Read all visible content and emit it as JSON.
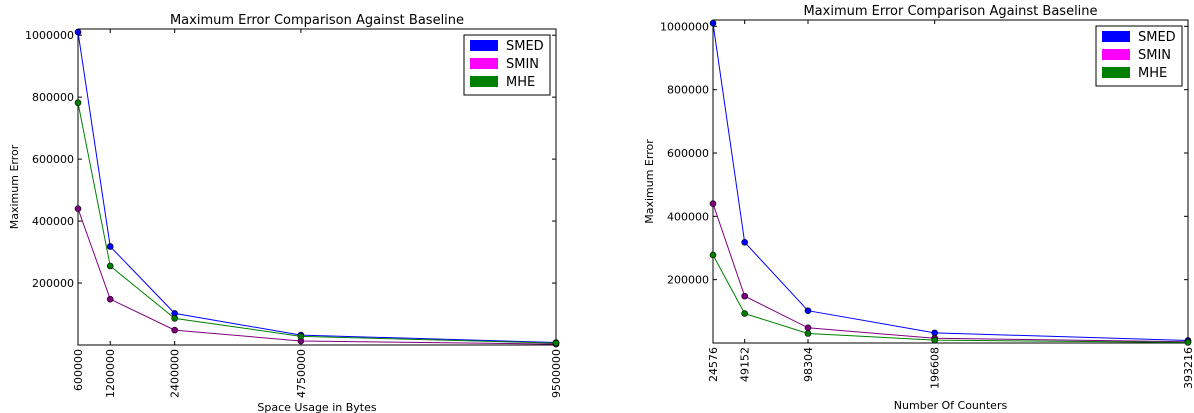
{
  "chart_data": [
    {
      "type": "line",
      "title": "Maximum Error Comparison Against Baseline",
      "xlabel": "Space Usage in Bytes",
      "ylabel": "Maximum Error",
      "x": [
        600000,
        1200000,
        2400000,
        4750000,
        9500000
      ],
      "x_tick_labels": [
        "600000",
        "1200000",
        "2400000",
        "4750000",
        "9500000"
      ],
      "xlim": [
        600000,
        9500000
      ],
      "ylim": [
        0,
        1020000
      ],
      "y_ticks": [
        200000,
        400000,
        600000,
        800000,
        1000000
      ],
      "y_tick_labels": [
        "200000",
        "400000",
        "600000",
        "800000",
        "1000000"
      ],
      "legend_position": "top-right",
      "grid": false,
      "series": [
        {
          "name": "SMED",
          "color": "#0000ff",
          "values": [
            1010000,
            318000,
            102000,
            32000,
            8000
          ]
        },
        {
          "name": "SMIN",
          "color": "#ff00ff",
          "values": [
            440000,
            148000,
            48000,
            13000,
            3000
          ]
        },
        {
          "name": "MHE",
          "color": "#008000",
          "values": [
            782000,
            255000,
            86000,
            28000,
            6000
          ]
        }
      ],
      "series_line_colors": [
        "#0000ff",
        "#800080",
        "#008000"
      ]
    },
    {
      "type": "line",
      "title": "Maximum Error Comparison Against Baseline",
      "xlabel": "Number Of Counters",
      "ylabel": "Maximum Error",
      "x": [
        24576,
        49152,
        98304,
        196608,
        393216
      ],
      "x_tick_labels": [
        "24576",
        "49152",
        "98304",
        "196608",
        "393216"
      ],
      "xlim": [
        24576,
        393216
      ],
      "ylim": [
        0,
        1020000
      ],
      "y_ticks": [
        200000,
        400000,
        600000,
        800000,
        1000000
      ],
      "y_tick_labels": [
        "200000",
        "400000",
        "600000",
        "800000",
        "1000000"
      ],
      "legend_position": "top-right",
      "grid": false,
      "series": [
        {
          "name": "SMED",
          "color": "#0000ff",
          "values": [
            1010000,
            318000,
            102000,
            32000,
            8000
          ]
        },
        {
          "name": "SMIN",
          "color": "#ff00ff",
          "values": [
            440000,
            148000,
            48000,
            15000,
            4000
          ]
        },
        {
          "name": "MHE",
          "color": "#008000",
          "values": [
            278000,
            93000,
            30000,
            9000,
            2000
          ]
        }
      ],
      "series_line_colors": [
        "#0000ff",
        "#800080",
        "#008000"
      ]
    }
  ]
}
